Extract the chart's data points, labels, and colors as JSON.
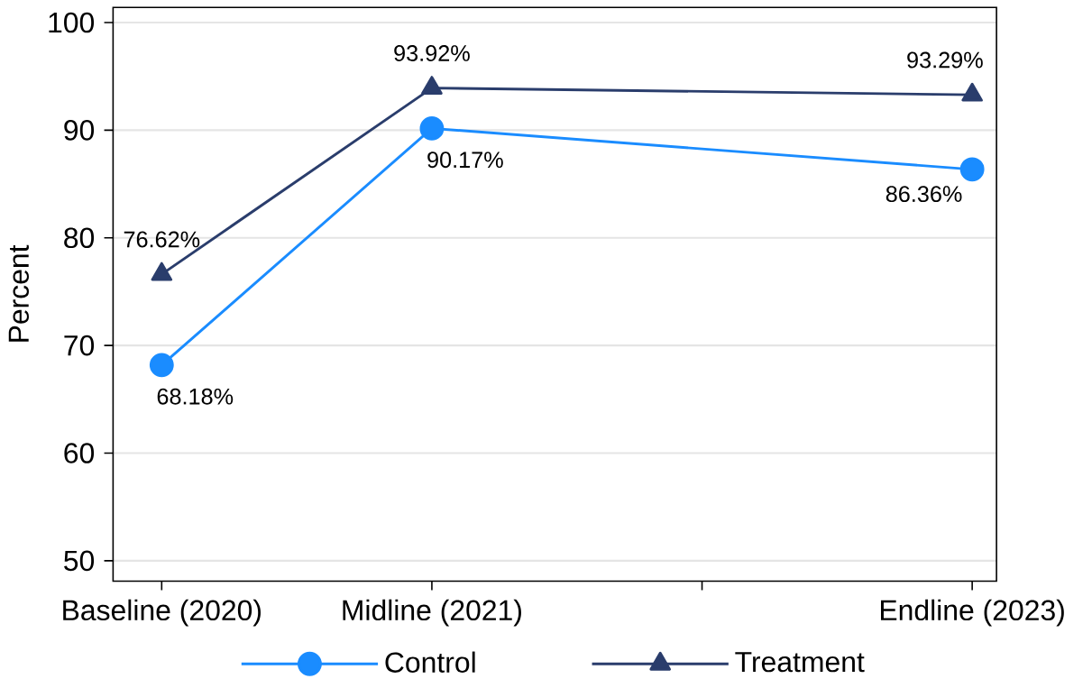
{
  "chart_data": {
    "type": "line",
    "ylabel": "Percent",
    "x": [
      2020,
      2021,
      2023
    ],
    "xlim": [
      2019.82,
      2023.09
    ],
    "xticks": [
      {
        "value": 2020,
        "label": "Baseline (2020)"
      },
      {
        "value": 2021,
        "label": "Midline (2021)"
      },
      {
        "value": 2022,
        "label": null
      },
      {
        "value": 2023,
        "label": "Endline (2023)"
      }
    ],
    "ylim": [
      48.1,
      101.4
    ],
    "yticks": [
      50,
      60,
      70,
      80,
      90,
      100
    ],
    "grid": "y",
    "legend": "bottom",
    "series": [
      {
        "name": "Control",
        "color": "#1a8cff",
        "marker": "circle",
        "values": [
          68.18,
          90.17,
          86.36
        ],
        "value_labels": [
          "68.18%",
          "90.17%",
          "86.36%"
        ]
      },
      {
        "name": "Treatment",
        "color": "#2a3d6c",
        "marker": "triangle",
        "values": [
          76.62,
          93.92,
          93.29
        ],
        "value_labels": [
          "76.62%",
          "93.92%",
          "93.29%"
        ]
      }
    ]
  }
}
